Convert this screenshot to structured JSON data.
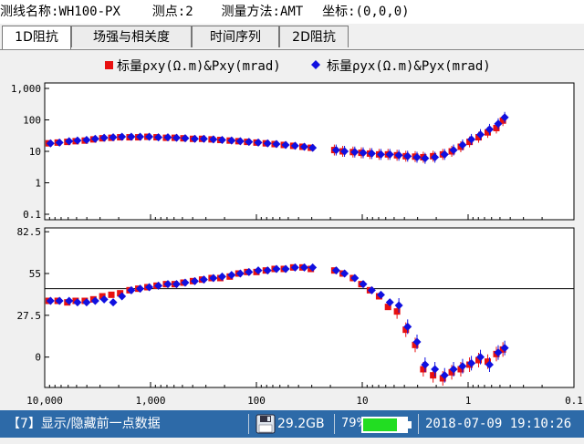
{
  "header": {
    "line_name_label": "测线名称:",
    "line_name": "WH100-PX",
    "point_label": "测点:",
    "point": "2",
    "method_label": "测量方法:",
    "method": "AMT",
    "coord_label": "坐标:",
    "coord": "(0,0,0)"
  },
  "tabs": [
    {
      "label": "1D阻抗",
      "active": true
    },
    {
      "label": "场强与相关度",
      "active": false
    },
    {
      "label": "时间序列",
      "active": false
    },
    {
      "label": "2D阻抗",
      "active": false
    }
  ],
  "legend": {
    "xy": "标量ρxy(Ω.m)&Pxy(mrad)",
    "yx": "标量ρyx(Ω.m)&Pyx(mrad)"
  },
  "colors": {
    "xy": "#e81010",
    "yx": "#1010e0",
    "status_bg": "#2d6aa8",
    "battery": "#22dd22"
  },
  "status": {
    "toggle_text": "【7】显示/隐藏前一点数据",
    "storage_icon": "floppy-disk-icon",
    "storage": "29.2GB",
    "battery_pct": "79%",
    "battery_level": 0.79,
    "datetime": "2018-07-09 19:10:26"
  },
  "chart_data": [
    {
      "type": "scatter",
      "name": "resistivity",
      "y_log": true,
      "ylim": [
        0.1,
        1000
      ],
      "ytick_labels": [
        "1,000",
        "100",
        "10",
        "1",
        "0.1"
      ],
      "ytick_values": [
        1000,
        100,
        10,
        1,
        0.1
      ],
      "x_log": true,
      "x_reversed": true,
      "xlim": [
        10000,
        0.1
      ],
      "xtick_labels": [
        "10,000",
        "1,000",
        "100",
        "10",
        "1",
        "0.1"
      ],
      "series": [
        {
          "name": "标量ρxy(Ω.m)",
          "marker": "square",
          "x": [
            9000,
            7400,
            6000,
            5000,
            4100,
            3400,
            2800,
            2300,
            1900,
            1550,
            1280,
            1050,
            860,
            700,
            580,
            480,
            390,
            320,
            260,
            215,
            175,
            145,
            120,
            98,
            80,
            66,
            54,
            44,
            36,
            30,
            18,
            15,
            12,
            10,
            8.3,
            6.8,
            5.6,
            4.6,
            3.8,
            3.1,
            2.6,
            2.1,
            1.7,
            1.4,
            1.15,
            0.95,
            0.78,
            0.64,
            0.53,
            0.46
          ],
          "y": [
            18,
            19,
            20,
            21,
            22,
            24,
            26,
            27,
            28,
            28,
            28,
            29,
            28,
            27,
            27,
            26,
            25,
            25,
            24,
            23,
            22,
            21,
            20,
            19,
            18,
            17,
            16,
            15,
            14,
            13,
            11,
            10,
            9.5,
            9,
            8.5,
            8,
            8,
            7.5,
            7,
            6.8,
            6.5,
            7,
            8,
            10,
            14,
            20,
            28,
            40,
            55,
            95
          ]
        },
        {
          "name": "标量ρyx(Ω.m)",
          "marker": "diamond",
          "x": [
            9000,
            7400,
            6000,
            5000,
            4100,
            3400,
            2800,
            2300,
            1900,
            1550,
            1280,
            1050,
            860,
            700,
            580,
            480,
            390,
            320,
            260,
            215,
            175,
            145,
            120,
            98,
            80,
            66,
            54,
            44,
            36,
            30,
            18,
            15,
            12,
            10,
            8.3,
            6.8,
            5.6,
            4.6,
            3.8,
            3.1,
            2.6,
            2.1,
            1.7,
            1.4,
            1.15,
            0.95,
            0.78,
            0.64,
            0.53,
            0.46
          ],
          "y": [
            18,
            19,
            21,
            22,
            23,
            25,
            27,
            28,
            29,
            29,
            29,
            29,
            28,
            28,
            27,
            26,
            25,
            25,
            24,
            23,
            22,
            21,
            20,
            19,
            18,
            17,
            16,
            15,
            14,
            13,
            11,
            10,
            9.5,
            9,
            8.5,
            8,
            8,
            7.5,
            7,
            6.5,
            6,
            6.5,
            8,
            11,
            16,
            24,
            34,
            50,
            75,
            120
          ]
        }
      ]
    },
    {
      "type": "scatter",
      "name": "phase",
      "ylim": [
        -20,
        85
      ],
      "ytick_labels": [
        "82.5",
        "55",
        "27.5",
        "0"
      ],
      "ytick_values": [
        82.5,
        55,
        27.5,
        0
      ],
      "reference_line": 45,
      "x_log": true,
      "x_reversed": true,
      "xlim": [
        10000,
        0.1
      ],
      "xtick_labels": [
        "10,000",
        "1,000",
        "100",
        "10",
        "1",
        "0.1"
      ],
      "series": [
        {
          "name": "Pxy(mrad)",
          "marker": "square",
          "x": [
            9000,
            7400,
            6000,
            5000,
            4100,
            3400,
            2800,
            2300,
            1900,
            1550,
            1280,
            1050,
            860,
            700,
            580,
            480,
            390,
            320,
            260,
            215,
            175,
            145,
            120,
            98,
            80,
            66,
            54,
            44,
            36,
            30,
            18,
            15,
            12,
            10,
            8.3,
            6.8,
            5.6,
            4.6,
            3.8,
            3.1,
            2.6,
            2.1,
            1.7,
            1.4,
            1.15,
            0.95,
            0.78,
            0.64,
            0.53,
            0.46
          ],
          "y": [
            37,
            37,
            36,
            37,
            37,
            38,
            40,
            41,
            42,
            44,
            45,
            46,
            47,
            48,
            48,
            49,
            50,
            51,
            52,
            52,
            53,
            55,
            56,
            56,
            57,
            58,
            58,
            59,
            59,
            58,
            57,
            55,
            52,
            48,
            44,
            40,
            33,
            30,
            18,
            8,
            -8,
            -12,
            -14,
            -10,
            -8,
            -5,
            -2,
            -3,
            2,
            5
          ]
        },
        {
          "name": "Pyx(mrad)",
          "marker": "diamond",
          "x": [
            9000,
            7400,
            6000,
            5000,
            4100,
            3400,
            2800,
            2300,
            1900,
            1550,
            1280,
            1050,
            860,
            700,
            580,
            480,
            390,
            320,
            260,
            215,
            175,
            145,
            120,
            98,
            80,
            66,
            54,
            44,
            36,
            30,
            18,
            15,
            12,
            10,
            8.3,
            6.8,
            5.6,
            4.6,
            3.8,
            3.1,
            2.6,
            2.1,
            1.7,
            1.4,
            1.15,
            0.95,
            0.78,
            0.64,
            0.53,
            0.46
          ],
          "y": [
            37,
            37,
            37,
            36,
            36,
            37,
            38,
            36,
            40,
            44,
            45,
            46,
            47,
            48,
            48,
            49,
            50,
            51,
            52,
            53,
            54,
            55,
            56,
            57,
            57,
            58,
            58,
            59,
            59,
            59,
            57,
            55,
            52,
            48,
            44,
            41,
            36,
            34,
            20,
            10,
            -5,
            -8,
            -12,
            -8,
            -6,
            -4,
            0,
            -5,
            3,
            6
          ]
        }
      ]
    }
  ]
}
